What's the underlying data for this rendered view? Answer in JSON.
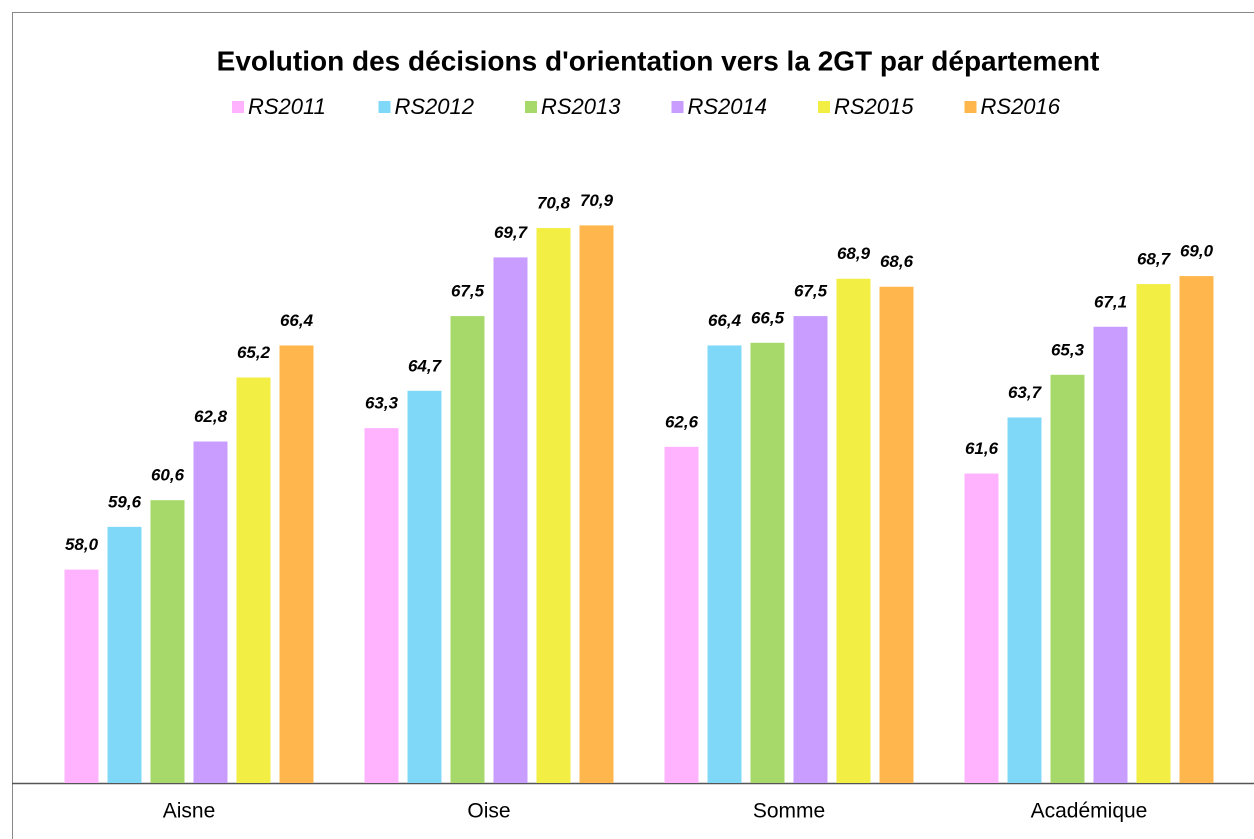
{
  "chart_data": {
    "type": "bar",
    "title": "Evolution des décisions d'orientation vers la 2GT par département",
    "categories": [
      "Aisne",
      "Oise",
      "Somme",
      "Académique"
    ],
    "ylim": [
      50,
      75
    ],
    "series": [
      {
        "name": "RS2011",
        "color": "#ffb3ff",
        "values": [
          58.0,
          63.3,
          62.6,
          61.6
        ],
        "value_labels": [
          "58,0",
          "63,3",
          "62,6",
          "61,6"
        ]
      },
      {
        "name": "RS2012",
        "color": "#80d8f8",
        "values": [
          59.6,
          64.7,
          66.4,
          63.7
        ],
        "value_labels": [
          "59,6",
          "64,7",
          "66,4",
          "63,7"
        ]
      },
      {
        "name": "RS2013",
        "color": "#a6d96a",
        "values": [
          60.6,
          67.5,
          66.5,
          65.3
        ],
        "value_labels": [
          "60,6",
          "67,5",
          "66,5",
          "65,3"
        ]
      },
      {
        "name": "RS2014",
        "color": "#c99cff",
        "values": [
          62.8,
          69.7,
          67.5,
          67.1
        ],
        "value_labels": [
          "62,8",
          "69,7",
          "67,5",
          "67,1"
        ]
      },
      {
        "name": "RS2015",
        "color": "#f3ee44",
        "values": [
          65.2,
          70.8,
          68.9,
          68.7
        ],
        "value_labels": [
          "65,2",
          "70,8",
          "68,9",
          "68,7"
        ]
      },
      {
        "name": "RS2016",
        "color": "#ffb74d",
        "values": [
          66.4,
          70.9,
          68.6,
          69.0
        ],
        "value_labels": [
          "66,4",
          "70,9",
          "68,6",
          "69,0"
        ]
      }
    ]
  }
}
